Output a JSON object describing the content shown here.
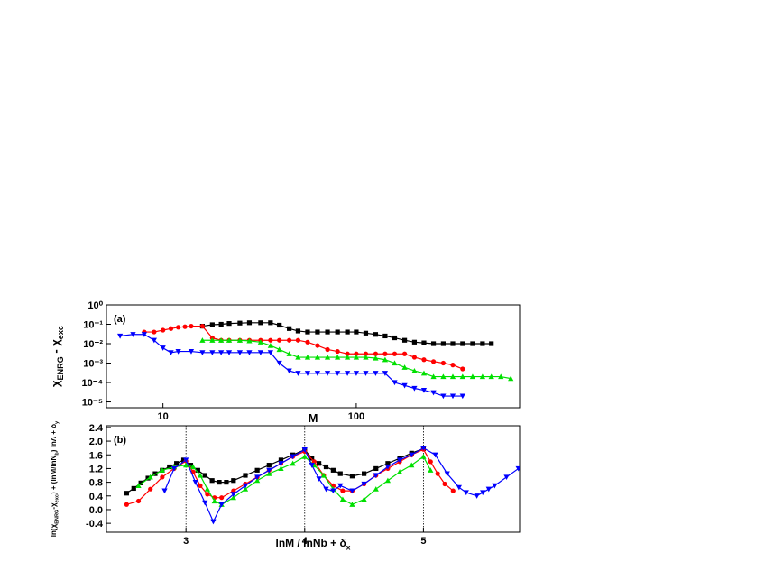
{
  "chart_data": [
    {
      "type": "line",
      "annotation": "(a)",
      "xlabel": [
        "M"
      ],
      "ylabel": [
        "χ",
        "ENRG",
        " - χ",
        "exc"
      ],
      "xlog": true,
      "ylog": true,
      "xlim": [
        5.1,
        700
      ],
      "ylim": [
        5e-06,
        1.0
      ],
      "xticks": [
        10,
        100
      ],
      "yticks": [
        {
          "value": 1,
          "label": "10⁰"
        },
        {
          "value": 0.1,
          "label": "10⁻¹"
        },
        {
          "value": 0.01,
          "label": "10⁻²"
        },
        {
          "value": 0.001,
          "label": "10⁻³"
        },
        {
          "value": 0.0001,
          "label": "10⁻⁴"
        },
        {
          "value": 1e-05,
          "label": "10⁻⁵"
        }
      ],
      "series": [
        {
          "color": "#000000",
          "marker": "square",
          "x": [
            16,
            18,
            20,
            22,
            25,
            28,
            32,
            36,
            40,
            45,
            50,
            56,
            63,
            71,
            80,
            90,
            100,
            112,
            126,
            141,
            158,
            178,
            200,
            224,
            251,
            282,
            316,
            355,
            400,
            450,
            500
          ],
          "values": [
            0.08,
            0.095,
            0.1,
            0.11,
            0.115,
            0.12,
            0.12,
            0.12,
            0.09,
            0.06,
            0.045,
            0.04,
            0.04,
            0.04,
            0.04,
            0.04,
            0.04,
            0.035,
            0.03,
            0.025,
            0.02,
            0.015,
            0.012,
            0.011,
            0.01,
            0.01,
            0.01,
            0.01,
            0.01,
            0.01,
            0.01
          ]
        },
        {
          "color": "#ff0000",
          "marker": "circle",
          "x": [
            8,
            9,
            10,
            11,
            12,
            13,
            14,
            16,
            18,
            20,
            22,
            25,
            28,
            32,
            36,
            40,
            45,
            50,
            56,
            63,
            71,
            80,
            90,
            100,
            112,
            126,
            141,
            158,
            178,
            200,
            224,
            251,
            282,
            316,
            355
          ],
          "values": [
            0.04,
            0.04,
            0.05,
            0.06,
            0.07,
            0.075,
            0.08,
            0.08,
            0.02,
            0.015,
            0.015,
            0.015,
            0.015,
            0.015,
            0.015,
            0.015,
            0.015,
            0.015,
            0.012,
            0.008,
            0.005,
            0.004,
            0.003,
            0.003,
            0.003,
            0.003,
            0.003,
            0.003,
            0.003,
            0.002,
            0.0015,
            0.0012,
            0.001,
            0.0008,
            0.0005
          ]
        },
        {
          "color": "#00e000",
          "marker": "triangle-up",
          "x": [
            16,
            18,
            20,
            22,
            25,
            28,
            32,
            36,
            40,
            45,
            50,
            56,
            63,
            71,
            80,
            90,
            100,
            112,
            126,
            141,
            158,
            178,
            200,
            224,
            251,
            282,
            316,
            355,
            400,
            450,
            500,
            560,
            630
          ],
          "values": [
            0.015,
            0.015,
            0.015,
            0.015,
            0.015,
            0.014,
            0.012,
            0.008,
            0.005,
            0.003,
            0.002,
            0.002,
            0.002,
            0.002,
            0.002,
            0.002,
            0.002,
            0.002,
            0.0018,
            0.0015,
            0.001,
            0.0006,
            0.0004,
            0.0003,
            0.0002,
            0.0002,
            0.0002,
            0.0002,
            0.0002,
            0.0002,
            0.0002,
            0.0002,
            0.00016
          ]
        },
        {
          "color": "#0000ff",
          "marker": "triangle-down",
          "x": [
            6,
            7,
            8,
            9,
            10,
            11,
            12,
            14,
            16,
            18,
            20,
            22,
            25,
            28,
            32,
            36,
            40,
            45,
            50,
            56,
            63,
            71,
            80,
            90,
            100,
            112,
            126,
            141,
            158,
            178,
            200,
            224,
            251,
            282,
            316,
            355
          ],
          "values": [
            0.025,
            0.03,
            0.03,
            0.015,
            0.006,
            0.0035,
            0.004,
            0.004,
            0.0035,
            0.0035,
            0.0035,
            0.0035,
            0.0035,
            0.0035,
            0.0035,
            0.0035,
            0.001,
            0.0004,
            0.0003,
            0.0003,
            0.0003,
            0.0003,
            0.0003,
            0.0003,
            0.0003,
            0.0003,
            0.0003,
            0.0003,
            0.0001,
            7e-05,
            5e-05,
            4e-05,
            3e-05,
            2e-05,
            2e-05,
            2e-05
          ]
        }
      ]
    },
    {
      "type": "line",
      "annotation": "(b)",
      "xlabel": [
        "lnM / lnNb + δ",
        "x"
      ],
      "ylabel": [
        "ln(χ",
        "ENRG",
        "-χ",
        "exc",
        ") + (lnM/lnN",
        "b",
        ") lnΛ + δ",
        "y"
      ],
      "xlim": [
        2.33,
        5.81
      ],
      "ylim": [
        -0.66,
        2.45
      ],
      "xticks": [
        3,
        4,
        5
      ],
      "yticks": [
        2.4,
        {
          "value": 2.0,
          "label": "2.0"
        },
        1.6,
        1.2,
        0.8,
        0.4,
        {
          "value": 0.0,
          "label": "0.0"
        },
        -0.4
      ],
      "vlines": [
        3,
        4,
        5
      ],
      "series": [
        {
          "color": "#000000",
          "marker": "square",
          "x": [
            2.5,
            2.56,
            2.62,
            2.68,
            2.74,
            2.8,
            2.86,
            2.92,
            2.98,
            3.04,
            3.1,
            3.16,
            3.22,
            3.28,
            3.34,
            3.4,
            3.5,
            3.6,
            3.7,
            3.8,
            3.9,
            4.0,
            4.06,
            4.12,
            4.18,
            4.24,
            4.3,
            4.4,
            4.5,
            4.6,
            4.7,
            4.8,
            4.9,
            5.0
          ],
          "values": [
            0.48,
            0.62,
            0.78,
            0.92,
            1.05,
            1.15,
            1.25,
            1.35,
            1.45,
            1.3,
            1.15,
            1.0,
            0.85,
            0.8,
            0.8,
            0.85,
            1.0,
            1.15,
            1.3,
            1.45,
            1.6,
            1.75,
            1.5,
            1.35,
            1.25,
            1.15,
            1.05,
            0.98,
            1.05,
            1.2,
            1.35,
            1.5,
            1.65,
            1.78
          ]
        },
        {
          "color": "#ff0000",
          "marker": "circle",
          "x": [
            2.5,
            2.6,
            2.7,
            2.8,
            2.9,
            3.0,
            3.06,
            3.12,
            3.18,
            3.24,
            3.3,
            3.4,
            3.5,
            3.6,
            3.7,
            3.8,
            3.9,
            4.0,
            4.08,
            4.16,
            4.24,
            4.32,
            4.4,
            4.5,
            4.6,
            4.7,
            4.8,
            4.9,
            5.0,
            5.06,
            5.12,
            5.18,
            5.25
          ],
          "values": [
            0.15,
            0.25,
            0.6,
            0.95,
            1.2,
            1.42,
            1.1,
            0.7,
            0.45,
            0.35,
            0.35,
            0.55,
            0.75,
            0.95,
            1.15,
            1.35,
            1.55,
            1.7,
            1.4,
            1.0,
            0.7,
            0.55,
            0.55,
            0.75,
            1.0,
            1.2,
            1.4,
            1.6,
            1.76,
            1.4,
            1.05,
            0.75,
            0.55
          ]
        },
        {
          "color": "#00e000",
          "marker": "triangle-up",
          "x": [
            2.6,
            2.7,
            2.8,
            2.9,
            3.0,
            3.06,
            3.12,
            3.18,
            3.24,
            3.3,
            3.4,
            3.5,
            3.6,
            3.7,
            3.8,
            3.9,
            4.0,
            4.08,
            4.16,
            4.24,
            4.32,
            4.4,
            4.5,
            4.6,
            4.7,
            4.8,
            4.9,
            5.0,
            5.06
          ],
          "values": [
            0.7,
            0.95,
            1.15,
            1.25,
            1.3,
            1.25,
            1.0,
            0.6,
            0.25,
            0.15,
            0.35,
            0.6,
            0.85,
            1.05,
            1.2,
            1.35,
            1.55,
            1.3,
            1.0,
            0.6,
            0.3,
            0.15,
            0.3,
            0.6,
            0.85,
            1.1,
            1.3,
            1.55,
            1.15
          ]
        },
        {
          "color": "#0000ff",
          "marker": "triangle-down",
          "x": [
            2.82,
            2.9,
            3.0,
            3.08,
            3.16,
            3.23,
            3.3,
            3.4,
            3.5,
            3.6,
            3.7,
            3.8,
            3.9,
            4.0,
            4.06,
            4.12,
            4.18,
            4.24,
            4.3,
            4.4,
            4.5,
            4.6,
            4.7,
            4.8,
            4.9,
            5.0,
            5.1,
            5.2,
            5.3,
            5.36,
            5.45,
            5.5,
            5.55,
            5.6,
            5.7,
            5.8
          ],
          "values": [
            0.55,
            1.2,
            1.45,
            0.8,
            0.2,
            -0.35,
            0.15,
            0.45,
            0.7,
            0.95,
            1.15,
            1.35,
            1.55,
            1.75,
            1.3,
            0.9,
            0.6,
            0.55,
            0.7,
            0.55,
            0.75,
            1.0,
            1.25,
            1.45,
            1.6,
            1.8,
            1.6,
            1.05,
            0.65,
            0.5,
            0.4,
            0.5,
            0.6,
            0.7,
            0.95,
            1.2
          ]
        }
      ]
    }
  ]
}
